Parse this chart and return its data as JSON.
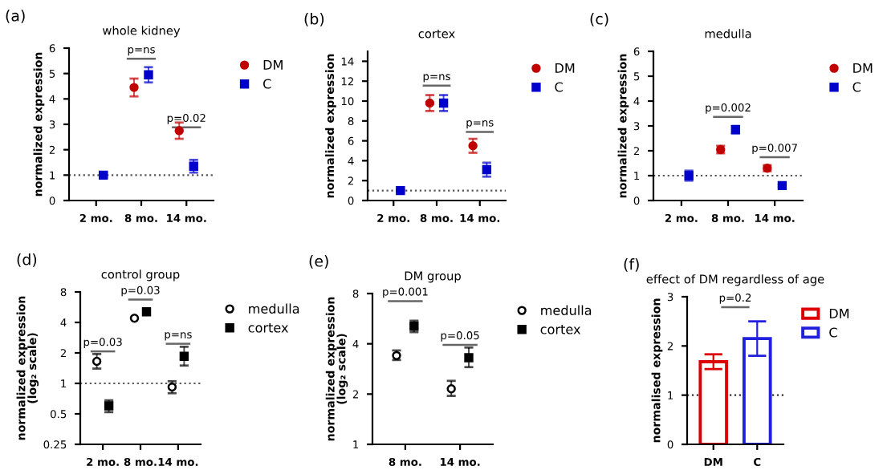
{
  "chart_data": [
    {
      "type": "scatter",
      "title": "whole kidney",
      "ylabel": "normalized expression",
      "categories": [
        "2 mo.",
        "8 mo.",
        "14 mo."
      ],
      "ylim": [
        0,
        6
      ],
      "yticks": [
        0,
        1,
        2,
        3,
        4,
        5,
        6
      ],
      "grid": false,
      "legend": "right",
      "series": [
        {
          "name": "DM",
          "color": "#c00000",
          "marker": "circle",
          "values": [
            null,
            4.45,
            2.75
          ],
          "errors": [
            null,
            0.35,
            0.32
          ]
        },
        {
          "name": "C",
          "color": "#0000cc",
          "marker": "square",
          "values": [
            1.0,
            4.95,
            1.35
          ],
          "errors": [
            0.1,
            0.3,
            0.25
          ]
        }
      ],
      "ref_lines": [
        {
          "axis": "y",
          "value": 1,
          "line_style": "dotted",
          "color": "#555555"
        }
      ],
      "annotations": [
        "(a)",
        "p=ns",
        "p=0.02"
      ]
    },
    {
      "type": "scatter",
      "title": "cortex",
      "ylabel": "normalized expression",
      "categories": [
        "2 mo.",
        "8 mo.",
        "14 mo."
      ],
      "ylim": [
        0,
        15
      ],
      "yticks": [
        0,
        2,
        4,
        6,
        8,
        10,
        12,
        14
      ],
      "grid": false,
      "legend": "right",
      "series": [
        {
          "name": "DM",
          "color": "#c00000",
          "marker": "circle",
          "values": [
            null,
            9.8,
            5.5
          ],
          "errors": [
            null,
            0.8,
            0.7
          ]
        },
        {
          "name": "C",
          "color": "#0000cc",
          "marker": "square",
          "values": [
            1.0,
            9.8,
            3.1
          ],
          "errors": [
            0.1,
            0.8,
            0.7
          ]
        }
      ],
      "ref_lines": [
        {
          "axis": "y",
          "value": 1,
          "line_style": "dotted",
          "color": "#555555"
        }
      ],
      "annotations": [
        "(b)",
        "p=ns",
        "p=ns"
      ]
    },
    {
      "type": "scatter",
      "title": "medulla",
      "ylabel": "normalized expression",
      "categories": [
        "2 mo.",
        "8 mo.",
        "14 mo."
      ],
      "ylim": [
        0,
        6
      ],
      "yticks": [
        0,
        1,
        2,
        3,
        4,
        5,
        6
      ],
      "grid": false,
      "legend": "right",
      "series": [
        {
          "name": "DM",
          "color": "#c00000",
          "marker": "circle",
          "values": [
            null,
            2.05,
            1.3
          ],
          "errors": [
            null,
            0.15,
            0.12
          ]
        },
        {
          "name": "C",
          "color": "#0000cc",
          "marker": "square",
          "values": [
            1.0,
            2.85,
            0.6
          ],
          "errors": [
            0.2,
            0.15,
            0.05
          ]
        }
      ],
      "ref_lines": [
        {
          "axis": "y",
          "value": 1,
          "line_style": "dotted",
          "color": "#555555"
        }
      ],
      "annotations": [
        "(c)",
        "p=0.002",
        "p=0.007"
      ]
    },
    {
      "type": "scatter",
      "title": "control group",
      "ylabel": "normalized expression\n(log₂ scale)",
      "categories": [
        "2 mo.",
        "8 mo.",
        "14 mo."
      ],
      "log": "y",
      "ylim": [
        0.25,
        8
      ],
      "yticks": [
        0.25,
        0.5,
        1,
        2,
        4,
        8
      ],
      "grid": false,
      "legend": "right",
      "series": [
        {
          "name": "medulla",
          "color": "#ffffff",
          "marker": "circle",
          "values": [
            1.65,
            4.4,
            0.92
          ],
          "errors": [
            [
              1.4,
              1.95
            ],
            null,
            [
              0.8,
              1.05
            ]
          ]
        },
        {
          "name": "cortex",
          "color": "#000000",
          "marker": "square",
          "values": [
            0.6,
            5.1,
            1.85
          ],
          "errors": [
            [
              0.52,
              0.68
            ],
            [
              4.8,
              5.4
            ],
            [
              1.5,
              2.3
            ]
          ]
        }
      ],
      "ref_lines": [
        {
          "axis": "y",
          "value": 1,
          "line_style": "dotted",
          "color": "#555555"
        }
      ],
      "annotations": [
        "(d)",
        "p=0.03",
        "p=0.03",
        "p=ns"
      ]
    },
    {
      "type": "scatter",
      "title": "DM group",
      "ylabel": "normalized expression\n(log₂ scale)",
      "categories": [
        "8 mo.",
        "14 mo."
      ],
      "log": "y",
      "ylim": [
        1,
        8
      ],
      "yticks": [
        1,
        2,
        4,
        8
      ],
      "grid": false,
      "legend": "right",
      "series": [
        {
          "name": "medulla",
          "color": "#ffffff",
          "marker": "circle",
          "values": [
            3.4,
            2.15
          ],
          "errors": [
            [
              3.2,
              3.65
            ],
            [
              1.95,
              2.4
            ]
          ]
        },
        {
          "name": "cortex",
          "color": "#000000",
          "marker": "square",
          "values": [
            5.1,
            3.3
          ],
          "errors": [
            [
              4.7,
              5.5
            ],
            [
              2.9,
              3.8
            ]
          ]
        }
      ],
      "annotations": [
        "(e)",
        "p=0.001",
        "p=0.05"
      ]
    },
    {
      "type": "bar",
      "title": "effect of DM regardless of age",
      "ylabel": "normalised expression",
      "categories": [
        "DM",
        "C"
      ],
      "ylim": [
        0,
        3
      ],
      "yticks": [
        0,
        1,
        2,
        3
      ],
      "grid": false,
      "legend": "right",
      "series": [
        {
          "name": "DM",
          "color": "#dd0000",
          "values": [
            1.68,
            null
          ],
          "errors": [
            0.15,
            null
          ]
        },
        {
          "name": "C",
          "color": "#2020dd",
          "values": [
            null,
            2.15
          ],
          "errors": [
            null,
            [
              1.8,
              2.5
            ]
          ]
        }
      ],
      "ref_lines": [
        {
          "axis": "y",
          "value": 1,
          "line_style": "dotted",
          "color": "#333333"
        }
      ],
      "annotations": [
        "(f)",
        "p=0.2"
      ]
    }
  ]
}
